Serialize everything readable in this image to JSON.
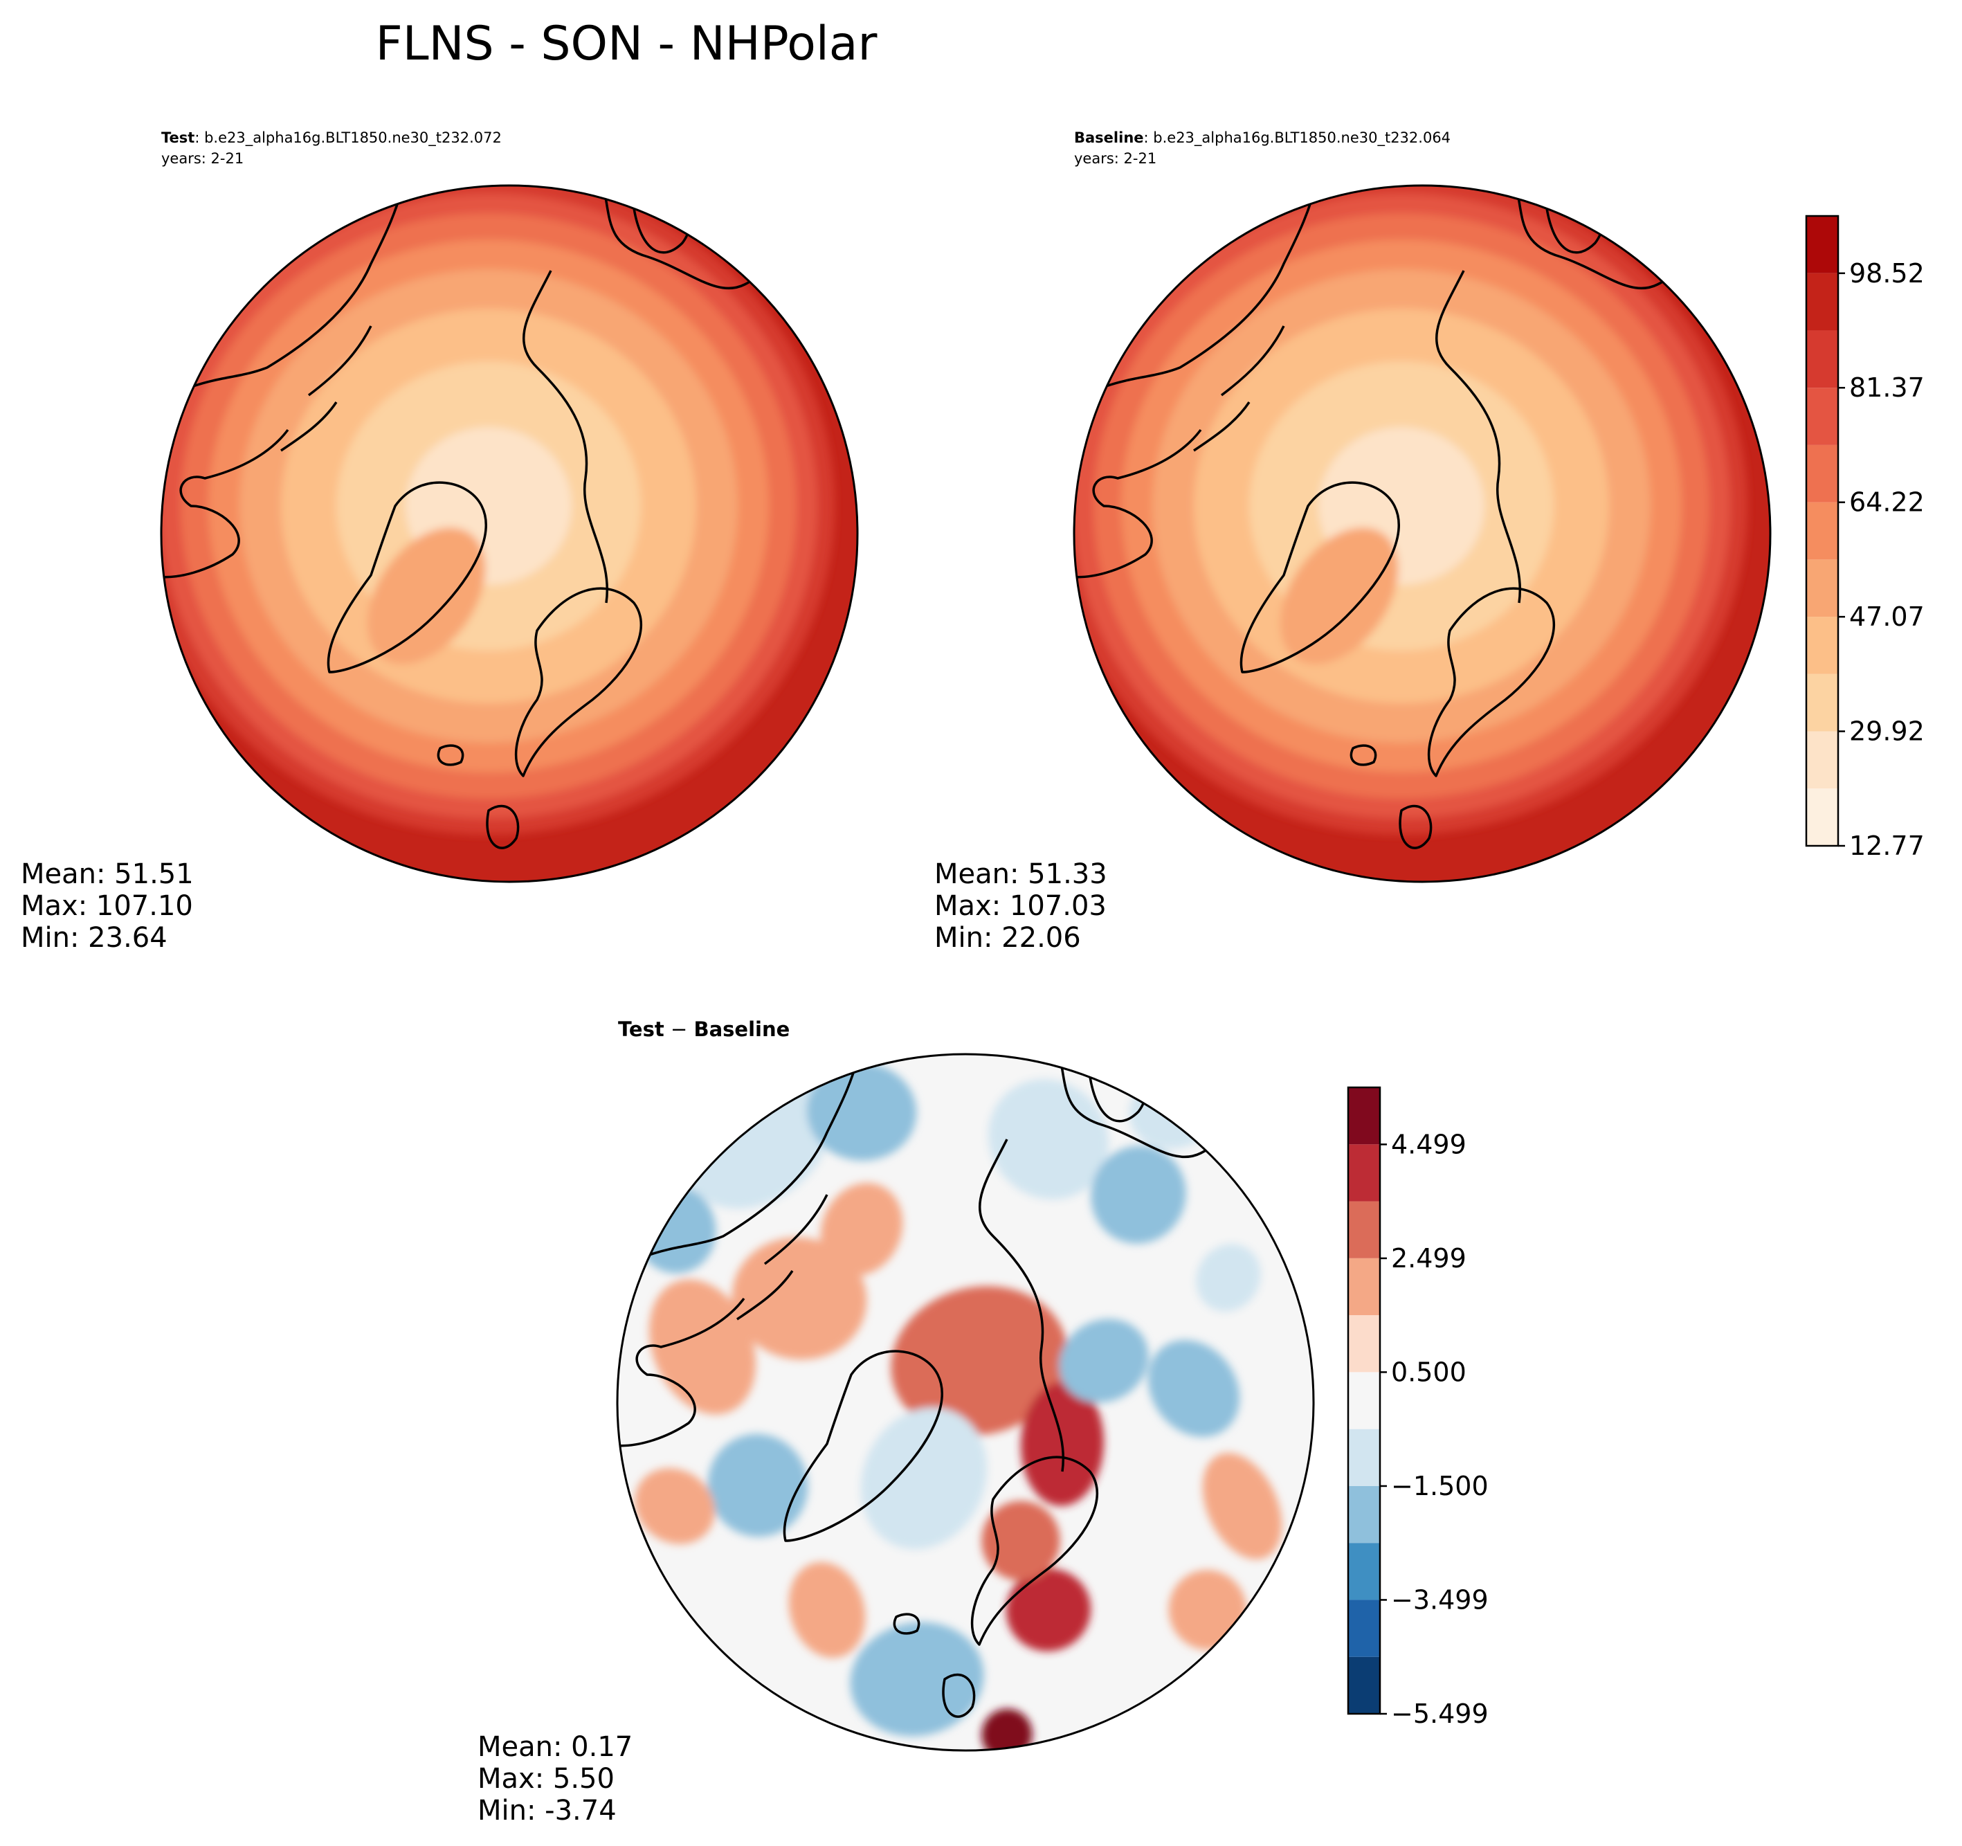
{
  "figure": {
    "title": "FLNS - SON - NHPolar"
  },
  "panels": {
    "test": {
      "label": "Test",
      "run": ": b.e23_alpha16g.BLT1850.ne30_t232.072",
      "years": "years: 2-21",
      "stats": {
        "mean": "Mean: 51.51",
        "max": "Max: 107.10",
        "min": "Min: 23.64"
      }
    },
    "baseline": {
      "label": "Baseline",
      "run": ": b.e23_alpha16g.BLT1850.ne30_t232.064",
      "years": "years: 2-21",
      "stats": {
        "mean": "Mean: 51.33",
        "max": "Max: 107.03",
        "min": "Min: 22.06"
      }
    },
    "diff": {
      "title_a": "Test",
      "title_sep": " − ",
      "title_b": "Baseline",
      "stats": {
        "mean": "Mean:  0.17",
        "max": "Max:  5.50",
        "min": "Min: -3.74"
      }
    }
  },
  "chart_data": [
    {
      "type": "heatmap",
      "projection": "north-polar-stereographic",
      "panel": "Test",
      "colormap": "OrRd",
      "colors": [
        "#fdf0e0",
        "#fde3c8",
        "#fcd3a2",
        "#fcbf88",
        "#f8a673",
        "#f58d5f",
        "#ee7150",
        "#e45542",
        "#d63a2f",
        "#c42319",
        "#ad0808",
        "#8e0000"
      ],
      "levels_range": [
        12.77,
        107.1
      ],
      "stats": {
        "mean": 51.51,
        "max": 107.1,
        "min": 23.64
      }
    },
    {
      "type": "heatmap",
      "projection": "north-polar-stereographic",
      "panel": "Baseline",
      "colormap": "OrRd",
      "levels_range": [
        12.77,
        107.03
      ],
      "stats": {
        "mean": 51.33,
        "max": 107.03,
        "min": 22.06
      },
      "colorbar": {
        "ticks": [
          "12.77",
          "29.92",
          "47.07",
          "64.22",
          "81.37",
          "98.52"
        ],
        "ticks_values": [
          12.77,
          29.92,
          47.07,
          64.22,
          81.37,
          98.52
        ],
        "range": [
          12.77,
          107.1
        ],
        "bands": 11
      }
    },
    {
      "type": "heatmap",
      "projection": "north-polar-stereographic",
      "panel": "Test - Baseline",
      "colormap": "RdBu_r",
      "colors": [
        "#0b3d73",
        "#1f63a9",
        "#3f8fc2",
        "#8fc0dc",
        "#d2e5f0",
        "#f6f6f6",
        "#fcdccb",
        "#f4a886",
        "#db6c59",
        "#bd2c35",
        "#80091e"
      ],
      "stats": {
        "mean": 0.17,
        "max": 5.5,
        "min": -3.74
      },
      "colorbar": {
        "ticks": [
          "−5.499",
          "−3.499",
          "−1.500",
          "0.500",
          "2.499",
          "4.499"
        ],
        "ticks_values": [
          -5.499,
          -3.499,
          -1.5,
          0.5,
          2.499,
          4.499
        ],
        "range": [
          -5.499,
          5.5
        ],
        "bands": 11
      }
    }
  ]
}
